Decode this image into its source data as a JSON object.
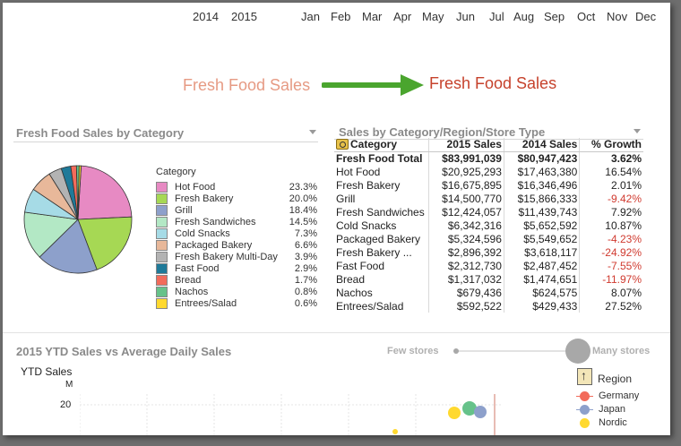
{
  "timeline": {
    "years": [
      "2014",
      "2015"
    ],
    "months": [
      "Jan",
      "Feb",
      "Mar",
      "Apr",
      "May",
      "Jun",
      "Jul",
      "Aug",
      "Sep",
      "Oct",
      "Nov",
      "Dec"
    ]
  },
  "caption": {
    "before": "Fresh Food Sales",
    "after": "Fresh Food Sales"
  },
  "pie_panel": {
    "title": "Fresh Food Sales by Category",
    "legend_title": "Category",
    "items": [
      {
        "label": "Hot Food",
        "pct": "23.3%",
        "value": 23.3,
        "color": "#e78ac3"
      },
      {
        "label": "Fresh Bakery",
        "pct": "20.0%",
        "value": 20.0,
        "color": "#a6d854"
      },
      {
        "label": "Grill",
        "pct": "18.4%",
        "value": 18.4,
        "color": "#8da0cb"
      },
      {
        "label": "Fresh Sandwiches",
        "pct": "14.5%",
        "value": 14.5,
        "color": "#b3e8c5"
      },
      {
        "label": "Cold Snacks",
        "pct": "7.3%",
        "value": 7.3,
        "color": "#a6dbe6"
      },
      {
        "label": "Packaged Bakery",
        "pct": "6.6%",
        "value": 6.6,
        "color": "#e8b89a"
      },
      {
        "label": "Fresh Bakery Multi-Day",
        "pct": "3.9%",
        "value": 3.9,
        "color": "#b3b3b3"
      },
      {
        "label": "Fast Food",
        "pct": "2.9%",
        "value": 2.9,
        "color": "#1f7a99"
      },
      {
        "label": "Bread",
        "pct": "1.7%",
        "value": 1.7,
        "color": "#f26b5b"
      },
      {
        "label": "Nachos",
        "pct": "0.8%",
        "value": 0.8,
        "color": "#66c28a"
      },
      {
        "label": "Entrees/Salad",
        "pct": "0.6%",
        "value": 0.6,
        "color": "#ffd92f"
      }
    ]
  },
  "table_panel": {
    "title": "Sales by Category/Region/Store Type",
    "headers": [
      "Category",
      "2015 Sales",
      "2014 Sales",
      "% Growth"
    ],
    "total": {
      "category": "Fresh Food Total",
      "s2015": "$83,991,039",
      "s2014": "$80,947,423",
      "growth": "3.62%"
    },
    "rows": [
      {
        "category": "Hot Food",
        "s2015": "$20,925,293",
        "s2014": "$17,463,380",
        "growth": "16.54%",
        "neg": false
      },
      {
        "category": "Fresh Bakery",
        "s2015": "$16,675,895",
        "s2014": "$16,346,496",
        "growth": "2.01%",
        "neg": false
      },
      {
        "category": "Grill",
        "s2015": "$14,500,770",
        "s2014": "$15,866,333",
        "growth": "-9.42%",
        "neg": true
      },
      {
        "category": "Fresh Sandwiches",
        "s2015": "$12,424,057",
        "s2014": "$11,439,743",
        "growth": "7.92%",
        "neg": false
      },
      {
        "category": "Cold Snacks",
        "s2015": "$6,342,316",
        "s2014": "$5,652,592",
        "growth": "10.87%",
        "neg": false
      },
      {
        "category": "Packaged Bakery",
        "s2015": "$5,324,596",
        "s2014": "$5,549,652",
        "growth": "-4.23%",
        "neg": true
      },
      {
        "category": "Fresh Bakery ...",
        "s2015": "$2,896,392",
        "s2014": "$3,618,117",
        "growth": "-24.92%",
        "neg": true
      },
      {
        "category": "Fast Food",
        "s2015": "$2,312,730",
        "s2014": "$2,487,452",
        "growth": "-7.55%",
        "neg": true
      },
      {
        "category": "Bread",
        "s2015": "$1,317,032",
        "s2014": "$1,474,651",
        "growth": "-11.97%",
        "neg": true
      },
      {
        "category": "Nachos",
        "s2015": "$679,436",
        "s2014": "$624,575",
        "growth": "8.07%",
        "neg": false
      },
      {
        "category": "Entrees/Salad",
        "s2015": "$592,522",
        "s2014": "$429,433",
        "growth": "27.52%",
        "neg": false
      }
    ]
  },
  "scatter_panel": {
    "title": "2015 YTD Sales vs Average Daily Sales",
    "ylabel": "YTD Sales",
    "yunit": "M",
    "ytick": "20",
    "slider": {
      "left_label": "Few stores",
      "right_label": "Many stores"
    },
    "region_title": "Region",
    "regions": [
      {
        "name": "Germany",
        "color": "#f26b5b"
      },
      {
        "name": "Japan",
        "color": "#8da0cb"
      },
      {
        "name": "Nordic",
        "color": "#ffd92f"
      }
    ]
  },
  "chart_data": {
    "type": "pie",
    "title": "Fresh Food Sales by Category",
    "categories": [
      "Hot Food",
      "Fresh Bakery",
      "Grill",
      "Fresh Sandwiches",
      "Cold Snacks",
      "Packaged Bakery",
      "Fresh Bakery Multi-Day",
      "Fast Food",
      "Bread",
      "Nachos",
      "Entrees/Salad"
    ],
    "values": [
      23.3,
      20.0,
      18.4,
      14.5,
      7.3,
      6.6,
      3.9,
      2.9,
      1.7,
      0.8,
      0.6
    ],
    "legend": "right"
  }
}
